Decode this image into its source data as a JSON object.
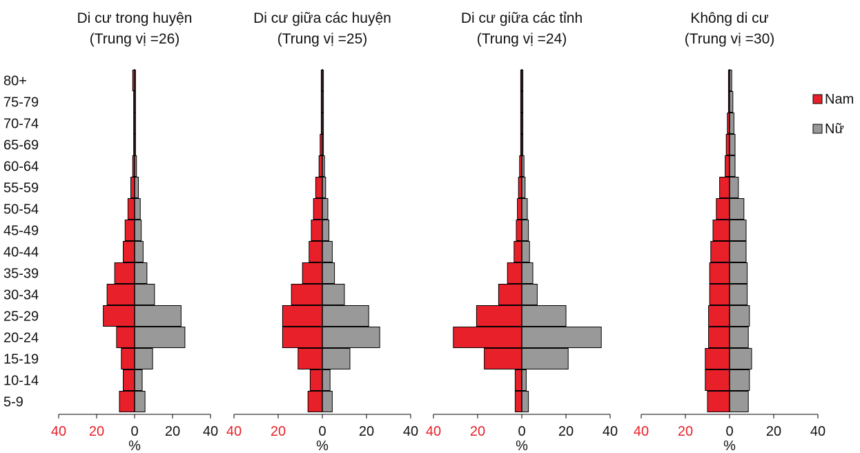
{
  "chart_data": {
    "type": "bar",
    "orientation": "horizontal-population-pyramid",
    "age_groups": [
      "5-9",
      "10-14",
      "15-19",
      "20-24",
      "25-29",
      "30-34",
      "35-39",
      "40-44",
      "45-49",
      "50-54",
      "55-59",
      "60-64",
      "65-69",
      "70-74",
      "75-79",
      "80+"
    ],
    "x_ticks": [
      {
        "value": -40,
        "label": "40"
      },
      {
        "value": -20,
        "label": "20"
      },
      {
        "value": 0,
        "label": "0"
      },
      {
        "value": 20,
        "label": "20"
      },
      {
        "value": 40,
        "label": "40"
      }
    ],
    "xlim": [
      -40,
      40
    ],
    "xlabel": "%",
    "legend": {
      "position": "right",
      "entries": [
        "Nam",
        "Nữ"
      ]
    },
    "colors": {
      "Nam": "#e8202a",
      "Nữ": "#999999",
      "negative_tick": "#e8202a",
      "positive_tick": "#111111",
      "outline": "#000000"
    },
    "panels": [
      {
        "title_line1": "Di cư trong huyện",
        "title_line2": "(Trung vị =26)",
        "series": [
          {
            "name": "Nam",
            "values": [
              8,
              6,
              7,
              9.5,
              16.5,
              14.5,
              10.5,
              6,
              5,
              3.5,
              2,
              1,
              0.5,
              0.5,
              0.5,
              1
            ]
          },
          {
            "name": "Nữ",
            "values": [
              5.5,
              4,
              9.5,
              26.5,
              24.5,
              10.5,
              6.5,
              4.5,
              3.5,
              3,
              2,
              1,
              0.5,
              0.5,
              0.5,
              0.5
            ]
          }
        ]
      },
      {
        "title_line1": "Di cư giữa các huyện",
        "title_line2": "(Trung vị =25)",
        "series": [
          {
            "name": "Nam",
            "values": [
              6.5,
              5.5,
              11,
              18,
              18,
              14,
              9,
              6,
              5,
              4,
              3,
              1.5,
              1,
              0.5,
              0.5,
              0.5
            ]
          },
          {
            "name": "Nữ",
            "values": [
              4.5,
              3.5,
              12.5,
              26,
              21,
              10,
              5.5,
              4.5,
              3,
              2.5,
              1.5,
              1,
              0.5,
              0.5,
              0.5,
              0.5
            ]
          }
        ]
      },
      {
        "title_line1": "Di cư giữa các tỉnh",
        "title_line2": "(Trung vị =24)",
        "series": [
          {
            "name": "Nam",
            "values": [
              3,
              3,
              17,
              31,
              20.5,
              10.5,
              6.5,
              3.5,
              2.5,
              2,
              1.5,
              1,
              0.5,
              0.5,
              0.5,
              0.5
            ]
          },
          {
            "name": "Nữ",
            "values": [
              3,
              2,
              21,
              36,
              20,
              7,
              5,
              3.5,
              3,
              2.5,
              1.5,
              1,
              0.5,
              0.5,
              0.5,
              0.5
            ]
          }
        ]
      },
      {
        "title_line1": "Không di cư",
        "title_line2": "(Trung vị =30)",
        "series": [
          {
            "name": "Nam",
            "values": [
              10,
              11,
              11,
              9.5,
              9.5,
              9,
              9,
              8.5,
              7.5,
              6,
              4.5,
              2,
              1.5,
              1,
              0.5,
              0.5
            ]
          },
          {
            "name": "Nữ",
            "values": [
              8.5,
              9,
              10,
              8.5,
              9,
              8,
              8,
              7.5,
              7.5,
              6.5,
              4,
              2.5,
              2.5,
              2,
              1.5,
              1
            ]
          }
        ]
      }
    ]
  }
}
